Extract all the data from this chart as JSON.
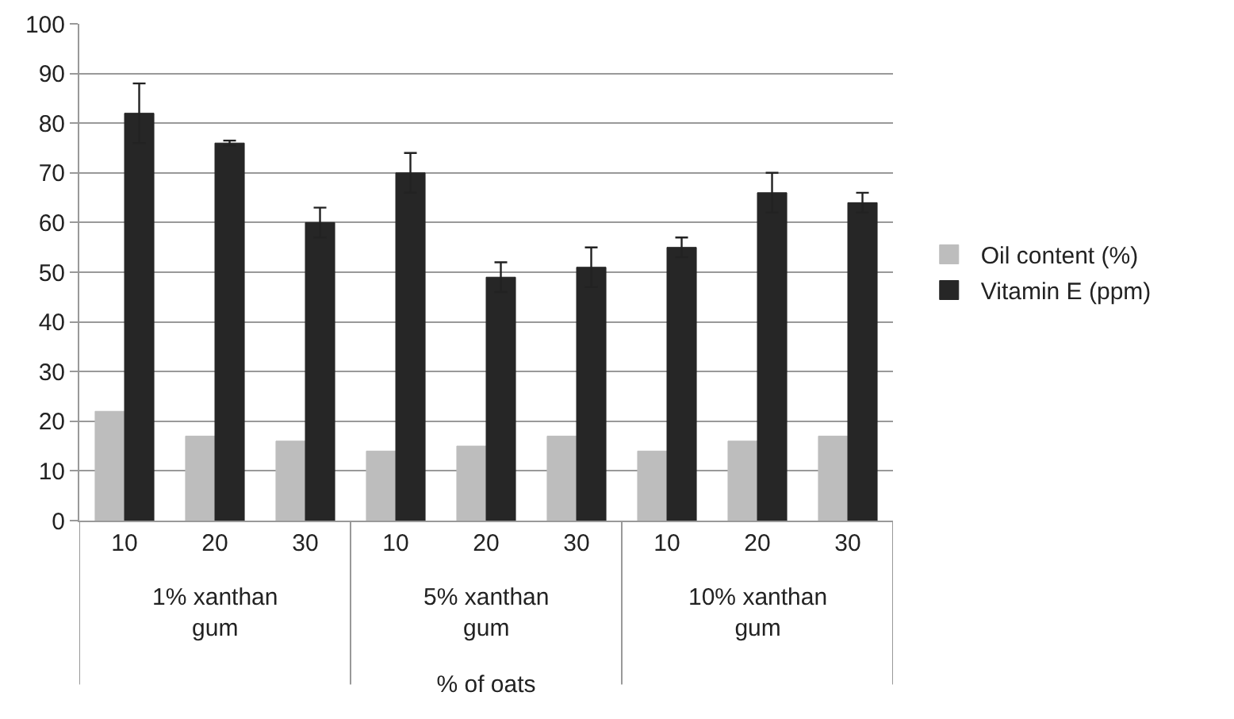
{
  "chart_data": {
    "type": "bar",
    "xlabel": "% of oats",
    "categories": [
      "10",
      "20",
      "30",
      "10",
      "20",
      "30",
      "10",
      "20",
      "30"
    ],
    "series": [
      {
        "name": "Oil content (%)",
        "color": "#bdbdbd",
        "values": [
          22,
          17,
          16,
          14,
          15,
          17,
          14,
          16,
          17
        ]
      },
      {
        "name": "Vitamin E (ppm)",
        "color": "#262626",
        "values": [
          82,
          76,
          60,
          70,
          49,
          51,
          55,
          66,
          64
        ],
        "errors": [
          6,
          0.5,
          3,
          4,
          3,
          4,
          2,
          4,
          2
        ]
      }
    ],
    "annotations": [
      "1% xanthan gum",
      "5% xanthan gum",
      "10% xanthan gum"
    ],
    "ylim": [
      0,
      100
    ],
    "yticks": [
      0,
      10,
      20,
      30,
      40,
      50,
      60,
      70,
      80,
      90,
      100
    ],
    "grid": "y",
    "legend": "right"
  }
}
